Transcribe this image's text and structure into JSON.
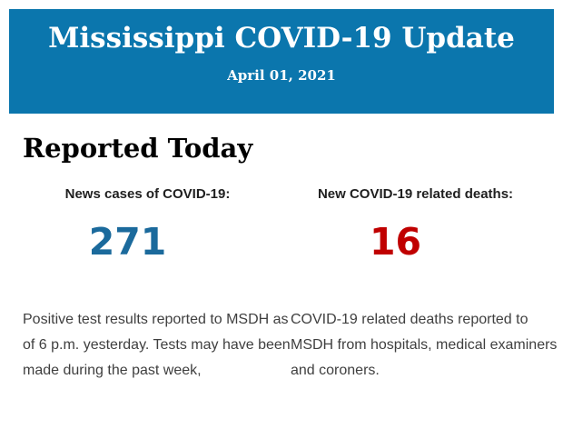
{
  "header": {
    "title": "Mississippi COVID-19 Update",
    "date": "April 01, 2021",
    "background_color": "#0b76ad",
    "text_color": "#ffffff"
  },
  "main": {
    "heading": "Reported Today",
    "stats": [
      {
        "label": "News cases of COVID-19:",
        "value": "271",
        "value_color": "#1b6a9c",
        "description_lines": [
          "Positive test results reported to MSDH as",
          "of 6 p.m. yesterday. Tests may have been",
          "made during the past week,"
        ]
      },
      {
        "label": "New COVID-19 related deaths:",
        "value": "16",
        "value_color": "#c00000",
        "description_lines": [
          "COVID-19 related deaths reported to",
          "MSDH from hospitals, medical examiners",
          "and coroners."
        ]
      }
    ]
  }
}
